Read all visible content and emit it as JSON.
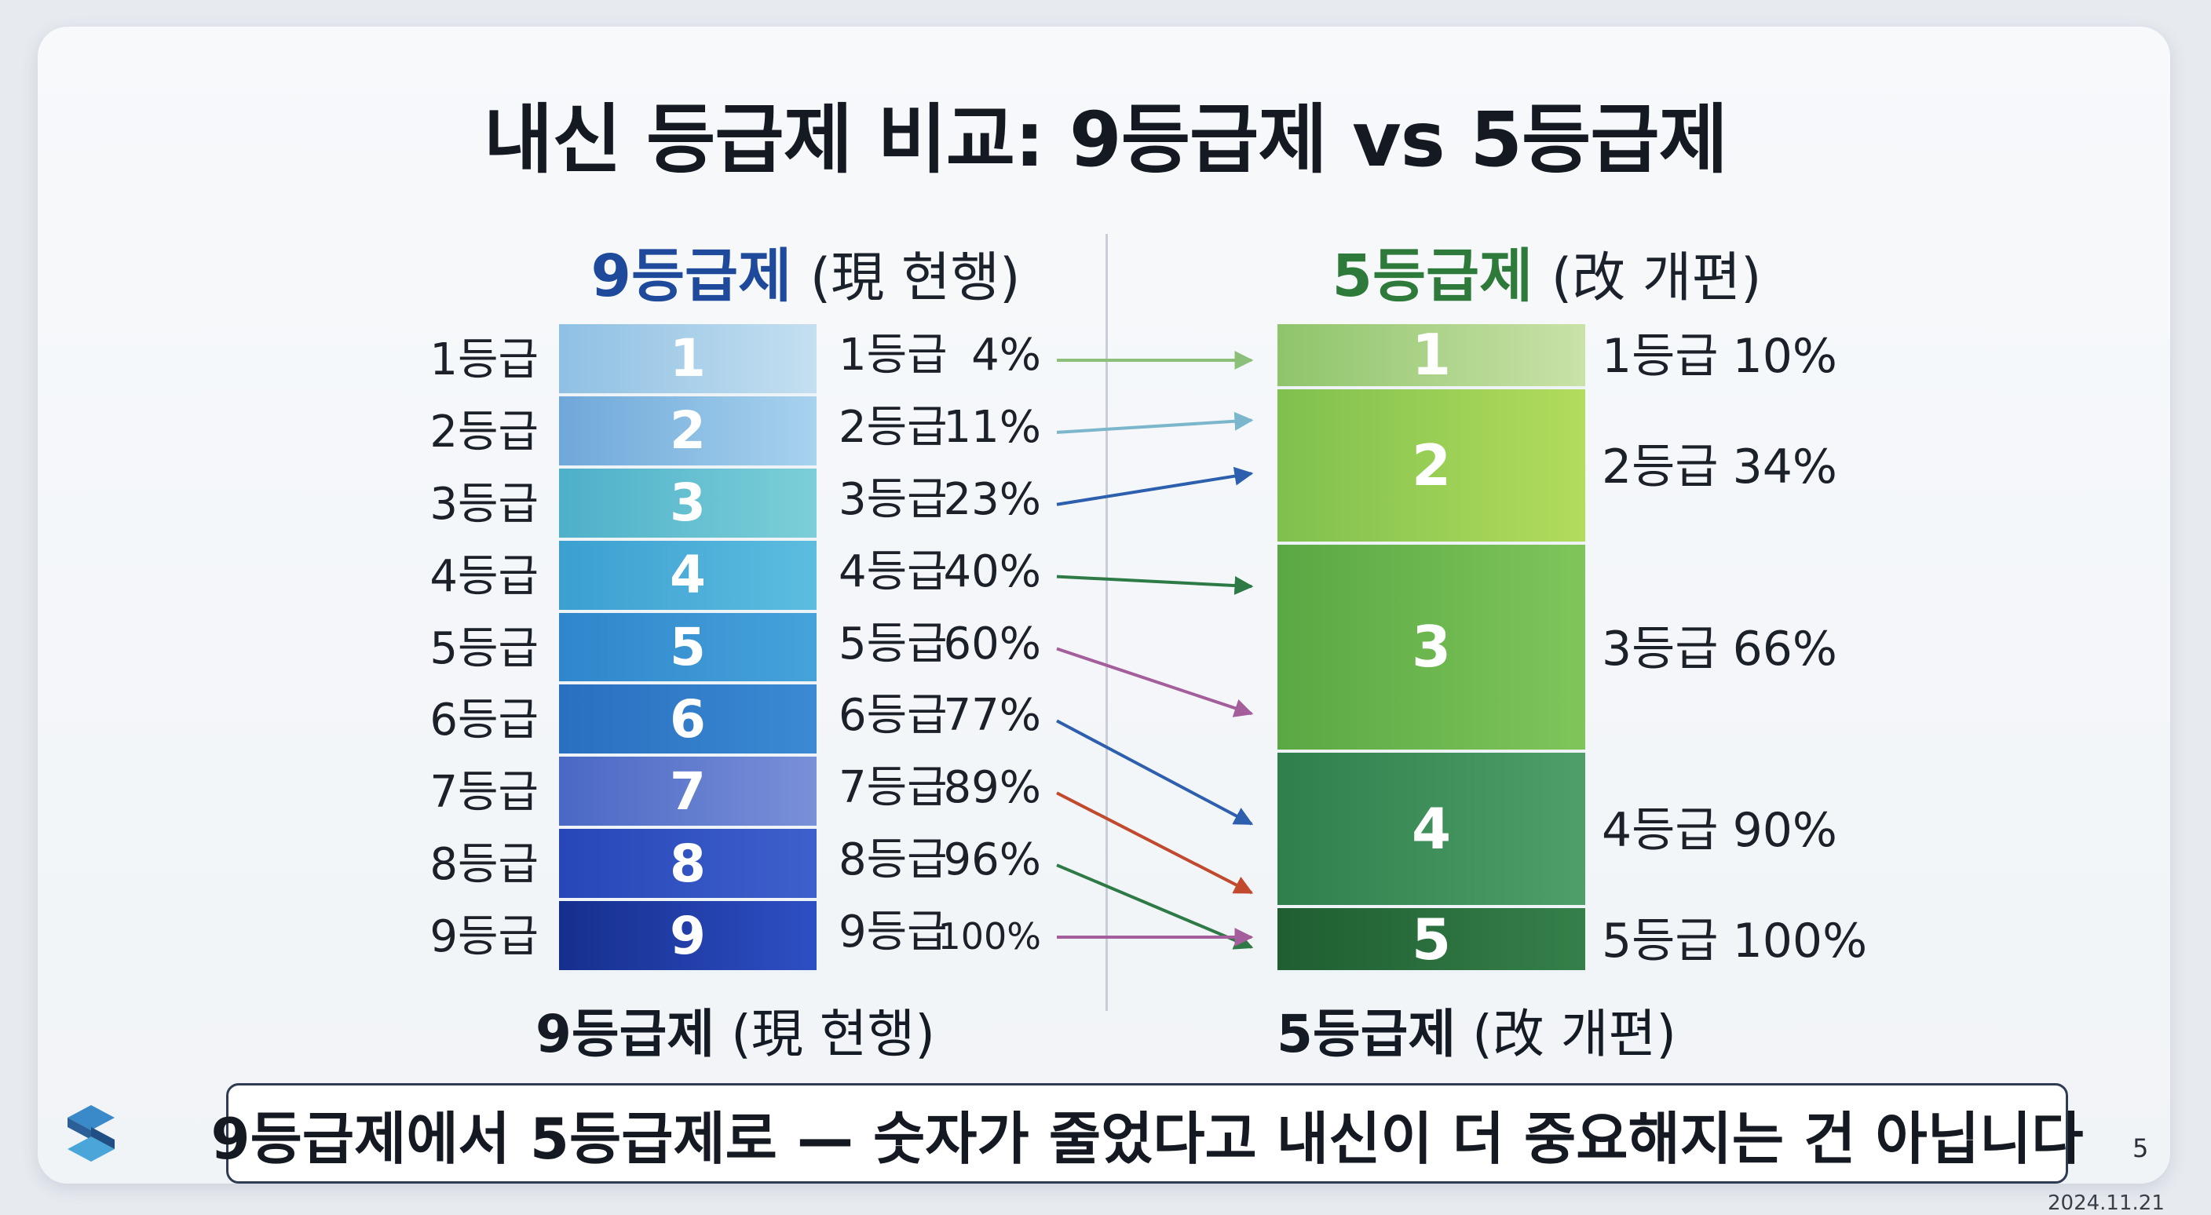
{
  "title": "내신 등급제 비교: 9등급제 vs 5등급제",
  "left_header": {
    "name": "9등급제",
    "note": "(現 현행)",
    "color": "#1f4a9c"
  },
  "right_header": {
    "name": "5등급제",
    "note": "(改 개편)",
    "color": "#2e7a3a"
  },
  "nine_grades": [
    {
      "label": "1등급",
      "num": "1",
      "cum_name": "1등급",
      "cum": "4%",
      "color": "#8fc0e3",
      "color2": "#c4dff0",
      "arrow_color": "#8cc07a"
    },
    {
      "label": "2등급",
      "num": "2",
      "cum_name": "2등급",
      "cum": "11%",
      "color": "#6ea8d9",
      "color2": "#a8d2ee",
      "arrow_color": "#7bb6cc"
    },
    {
      "label": "3등급",
      "num": "3",
      "cum_name": "3등급",
      "cum": "23%",
      "color": "#4db0c9",
      "color2": "#7ccfd8",
      "arrow_color": "#2c5fae"
    },
    {
      "label": "4등급",
      "num": "4",
      "cum_name": "4등급",
      "cum": "40%",
      "color": "#3b9fd0",
      "color2": "#5dbde0",
      "arrow_color": "#2e7a47"
    },
    {
      "label": "5등급",
      "num": "5",
      "cum_name": "5등급",
      "cum": "60%",
      "color": "#2f86cc",
      "color2": "#46a3da",
      "arrow_color": "#a45e9c"
    },
    {
      "label": "6등급",
      "num": "6",
      "cum_name": "6등급",
      "cum": "77%",
      "color": "#2a6fc0",
      "color2": "#3b8ad3",
      "arrow_color": "#2d5fae"
    },
    {
      "label": "7등급",
      "num": "7",
      "cum_name": "7등급",
      "cum": "89%",
      "color": "#4a68c4",
      "color2": "#7a90d8",
      "arrow_color": "#c0492e"
    },
    {
      "label": "8등급",
      "num": "8",
      "cum_name": "8등급",
      "cum": "96%",
      "color": "#2746b8",
      "color2": "#3e60cc",
      "arrow_color": "#2e7a47"
    },
    {
      "label": "9등급",
      "num": "9",
      "cum_name": "9등급",
      "cum": "100%",
      "color": "#162f8e",
      "color2": "#2e4fc4",
      "arrow_color": "#a45e9c"
    }
  ],
  "five_grades": [
    {
      "num": "1",
      "cum_name": "1등급",
      "cum": "10%",
      "color": "#8fc46b",
      "color2": "#c9e2a8"
    },
    {
      "num": "2",
      "cum_name": "2등급",
      "cum": "34%",
      "color": "#7fc04e",
      "color2": "#b2dc5c"
    },
    {
      "num": "3",
      "cum_name": "3등급",
      "cum": "66%",
      "color": "#5aa844",
      "color2": "#7fc55a"
    },
    {
      "num": "4",
      "cum_name": "4등급",
      "cum": "90%",
      "color": "#2f7f4c",
      "color2": "#4f9f6a"
    },
    {
      "num": "5",
      "cum_name": "5등급",
      "cum": "100%",
      "color": "#1f5e30",
      "color2": "#35804a"
    }
  ],
  "bottom_left": {
    "name": "9등급제",
    "note": "(現 현행)"
  },
  "bottom_right": {
    "name": "5등급제",
    "note": "(改 개편)"
  },
  "banner": "9등급제에서 5등급제로 — 숫자가 줄었다고 내신이 더 중요해지는 건 아닙니다",
  "page_number": "5",
  "date": "2024.11.21",
  "logo_icon": "s-logo-icon"
}
